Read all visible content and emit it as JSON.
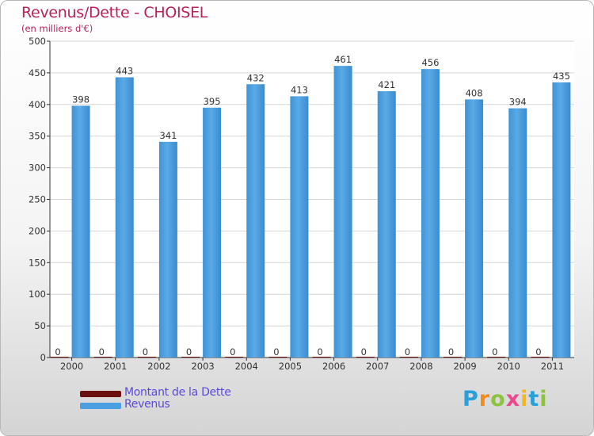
{
  "header": {
    "title": "Revenus/Dette - CHOISEL",
    "subtitle": "(en milliers d'€)"
  },
  "chart_data": {
    "type": "bar",
    "title": "Revenus/Dette - CHOISEL",
    "ylabel": "(en milliers d'€)",
    "xlabel": "",
    "categories": [
      "2000",
      "2001",
      "2002",
      "2003",
      "2004",
      "2005",
      "2006",
      "2007",
      "2008",
      "2009",
      "2010",
      "2011"
    ],
    "ylim": [
      0,
      500
    ],
    "yticks": [
      0,
      50,
      100,
      150,
      200,
      250,
      300,
      350,
      400,
      450,
      500
    ],
    "grid": true,
    "legend_position": "bottom-left",
    "series": [
      {
        "name": "Montant de la Dette",
        "color": "#6b0f0f",
        "values": [
          0,
          0,
          0,
          0,
          0,
          0,
          0,
          0,
          0,
          0,
          0,
          0
        ]
      },
      {
        "name": "Revenus",
        "color": "#4a9fe0",
        "values": [
          398,
          443,
          341,
          395,
          432,
          413,
          461,
          421,
          456,
          408,
          394,
          435
        ]
      }
    ]
  },
  "legend": {
    "items": [
      {
        "label": "Montant de la Dette",
        "color": "#6b0f0f"
      },
      {
        "label": "Revenus",
        "color": "#4a9fe0"
      }
    ]
  },
  "logo": {
    "letters": [
      {
        "ch": "P",
        "color": "#2a9fd8"
      },
      {
        "ch": "r",
        "color": "#f08c1e"
      },
      {
        "ch": "o",
        "color": "#8cc43c"
      },
      {
        "ch": "x",
        "color": "#e84a8c"
      },
      {
        "ch": "i",
        "color": "#f2b81e"
      },
      {
        "ch": "t",
        "color": "#2a9fd8"
      },
      {
        "ch": "i",
        "color": "#8cc43c"
      }
    ]
  }
}
